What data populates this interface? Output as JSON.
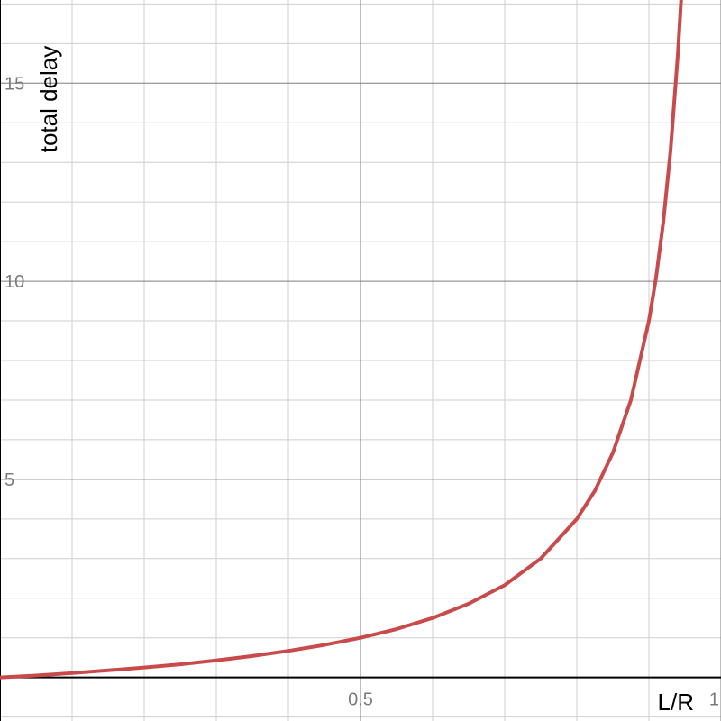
{
  "chart_data": {
    "type": "line",
    "title": "",
    "xlabel": "L/R",
    "ylabel": "total delay",
    "xlim": [
      0,
      1.0
    ],
    "ylim": [
      -1.1,
      17.1
    ],
    "grid": true,
    "legend": "none",
    "x_ticks": [
      {
        "value": 0.5,
        "label": "0.5"
      },
      {
        "value": 1.0,
        "label": "1"
      }
    ],
    "y_ticks": [
      {
        "value": 5,
        "label": "5"
      },
      {
        "value": 10,
        "label": "10"
      },
      {
        "value": 15,
        "label": "15"
      }
    ],
    "series": [
      {
        "color": "#c94a4a",
        "x": [
          0,
          0.05,
          0.1,
          0.15,
          0.2,
          0.25,
          0.3,
          0.35,
          0.4,
          0.45,
          0.5,
          0.55,
          0.6,
          0.65,
          0.7,
          0.75,
          0.8,
          0.825,
          0.85,
          0.875,
          0.9,
          0.91,
          0.92,
          0.93,
          0.94,
          0.945
        ],
        "y": [
          0,
          0.05,
          0.11,
          0.18,
          0.25,
          0.33,
          0.43,
          0.54,
          0.67,
          0.82,
          1.0,
          1.22,
          1.5,
          1.86,
          2.33,
          3.0,
          4.0,
          4.71,
          5.67,
          7.0,
          9.0,
          10.1,
          11.5,
          13.3,
          15.7,
          17.2
        ]
      }
    ]
  }
}
